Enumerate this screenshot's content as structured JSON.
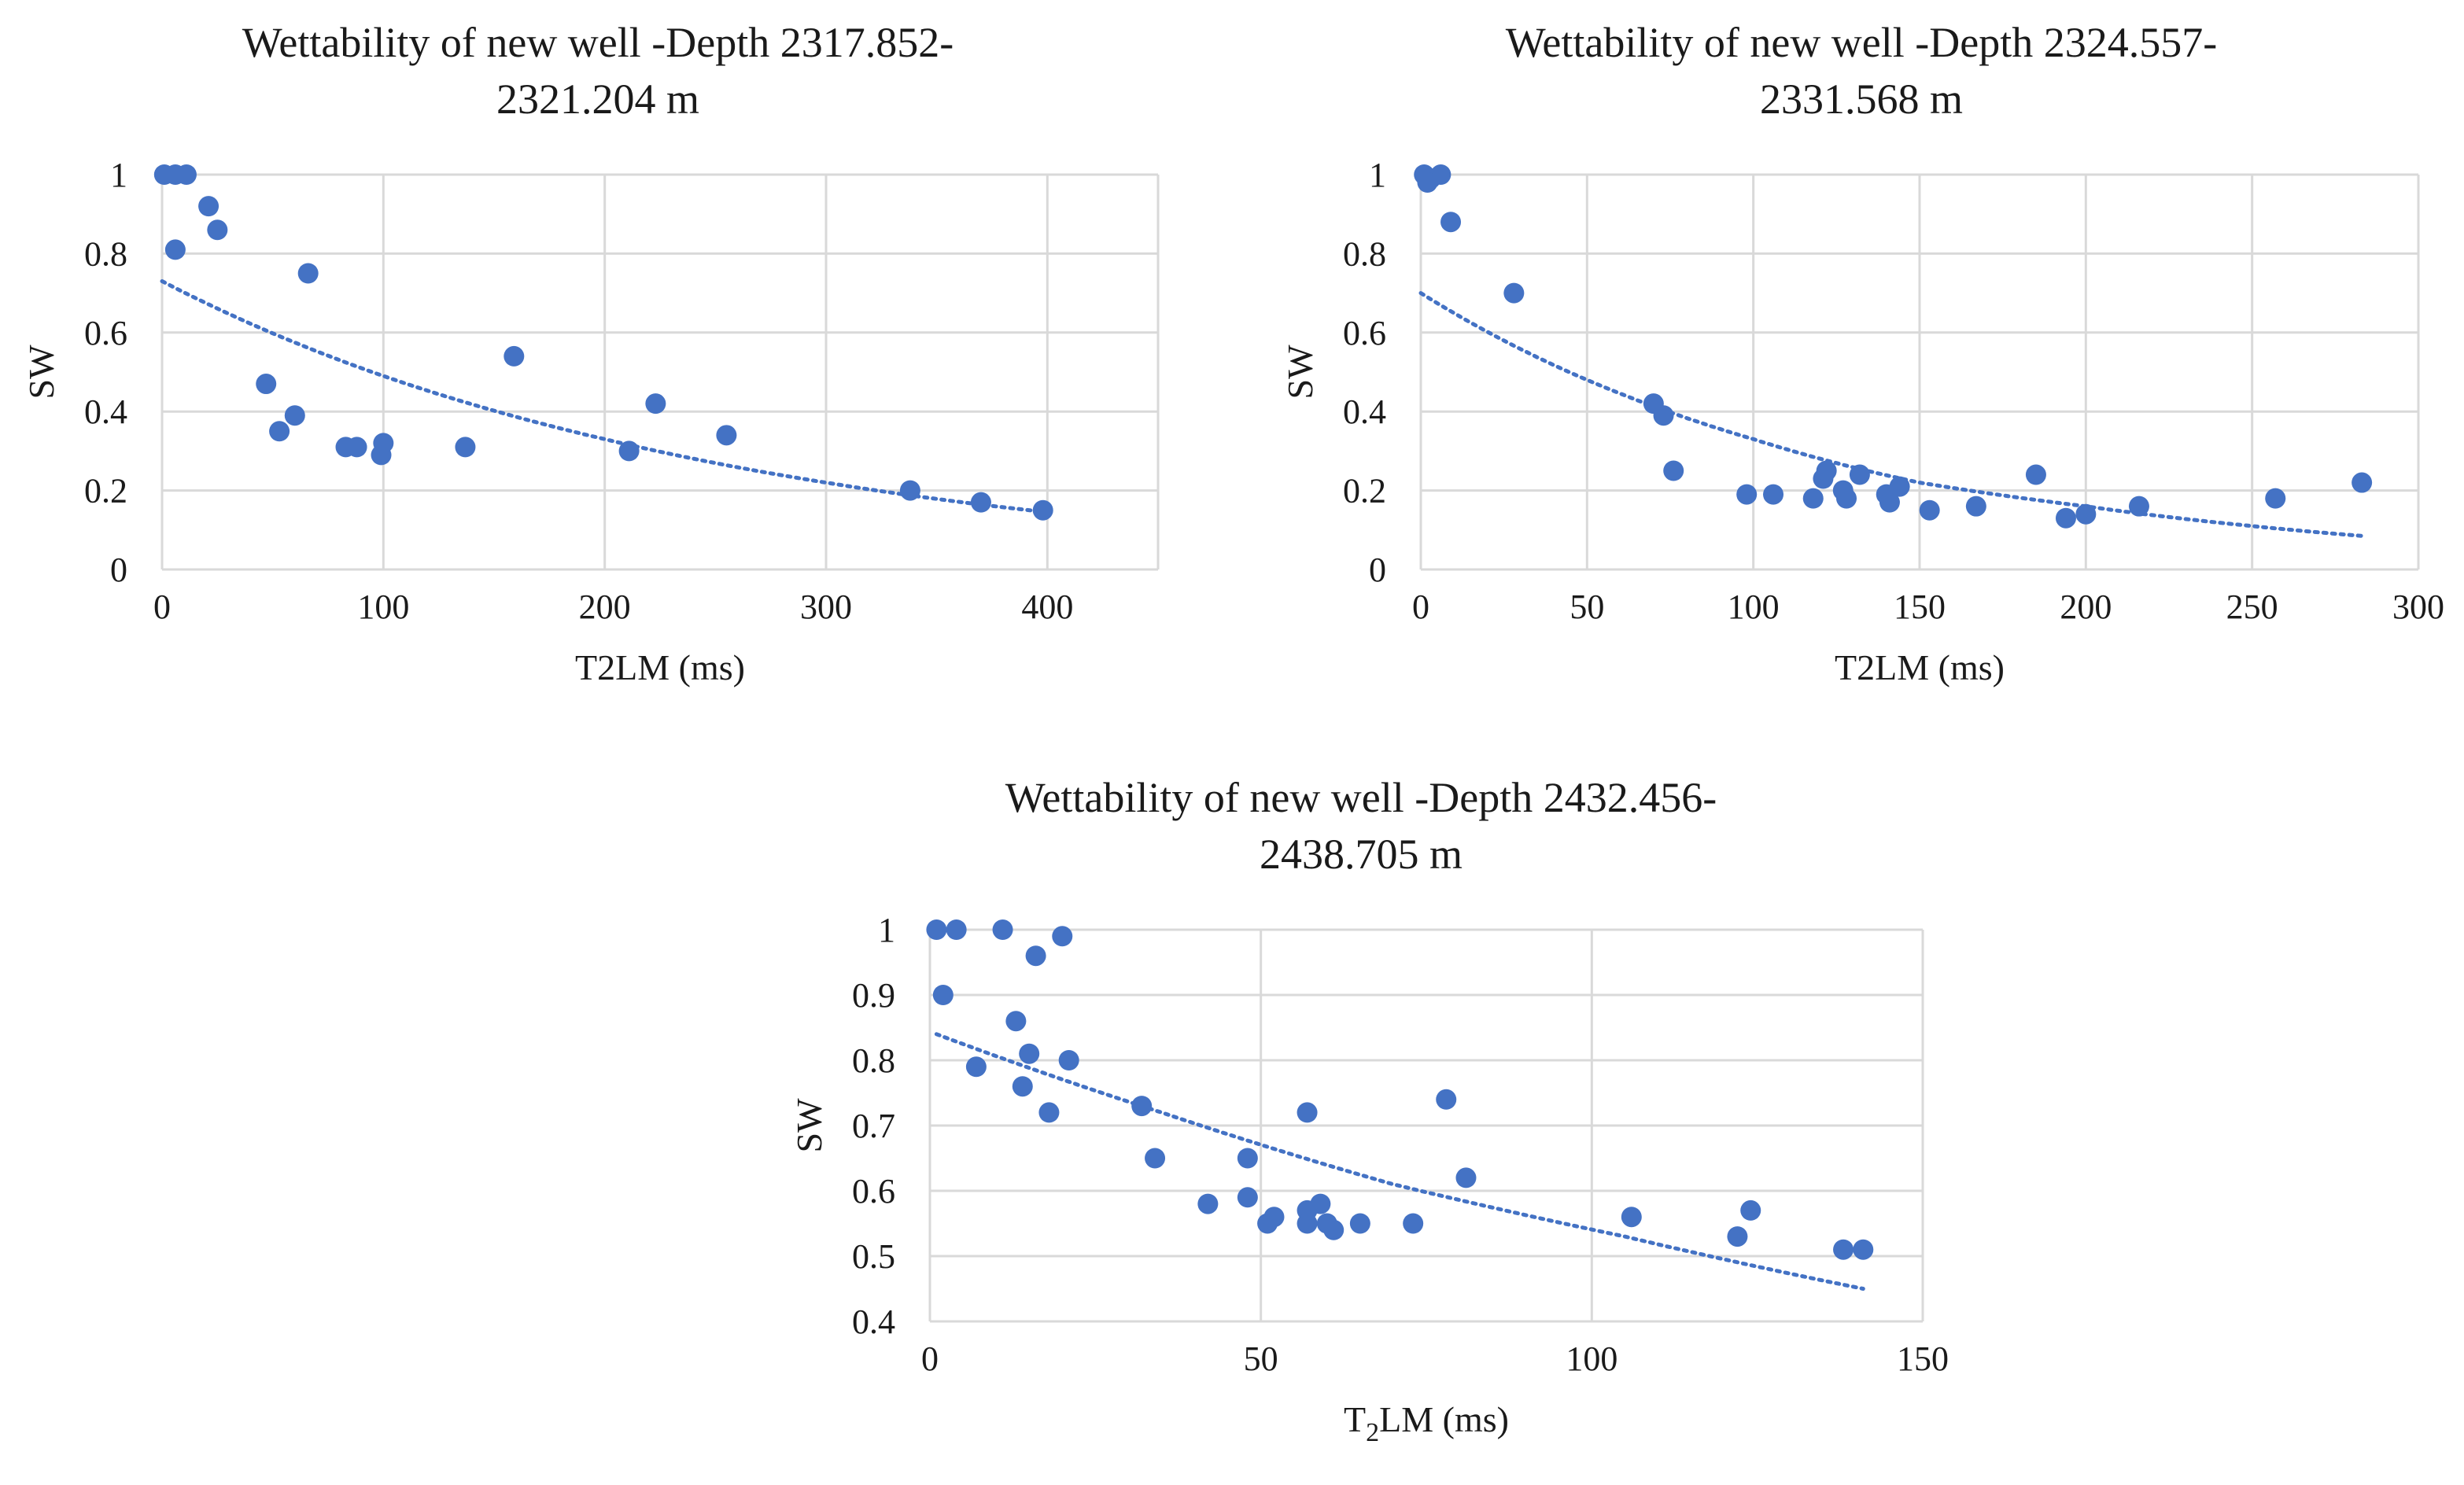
{
  "chart_data": [
    {
      "type": "scatter",
      "title": "Wettability of new well -Depth 2317.852-\n2321.204 m",
      "xlabel": "T2LM (ms)",
      "xlabel_sub": "",
      "xlabel_after": "",
      "ylabel": "SW",
      "xlim": [
        0,
        450
      ],
      "ylim": [
        0,
        1
      ],
      "xticks": [
        0,
        100,
        200,
        300,
        400
      ],
      "yticks": [
        0,
        0.2,
        0.4,
        0.6,
        0.8,
        1
      ],
      "grid": true,
      "series": [
        {
          "name": "SW",
          "color": "#4472c4",
          "points": [
            [
              1,
              1
            ],
            [
              6,
              1
            ],
            [
              11,
              1
            ],
            [
              6,
              0.81
            ],
            [
              21,
              0.92
            ],
            [
              25,
              0.86
            ],
            [
              66,
              0.75
            ],
            [
              47,
              0.47
            ],
            [
              53,
              0.35
            ],
            [
              60,
              0.39
            ],
            [
              83,
              0.31
            ],
            [
              88,
              0.31
            ],
            [
              99,
              0.29
            ],
            [
              100,
              0.32
            ],
            [
              137,
              0.31
            ],
            [
              159,
              0.54
            ],
            [
              211,
              0.3
            ],
            [
              223,
              0.42
            ],
            [
              255,
              0.34
            ],
            [
              338,
              0.2
            ],
            [
              370,
              0.17
            ],
            [
              398,
              0.15
            ]
          ]
        }
      ],
      "trendline": {
        "type": "exponential",
        "points": [
          [
            0,
            0.73
          ],
          [
            100,
            0.49
          ],
          [
            200,
            0.33
          ],
          [
            300,
            0.22
          ],
          [
            400,
            0.145
          ]
        ]
      }
    },
    {
      "type": "scatter",
      "title": "Wettability of new well -Depth 2324.557-\n2331.568 m",
      "xlabel": "T2LM (ms)",
      "xlabel_sub": "",
      "xlabel_after": "",
      "ylabel": "SW",
      "xlim": [
        0,
        300
      ],
      "ylim": [
        0,
        1
      ],
      "xticks": [
        0,
        50,
        100,
        150,
        200,
        250,
        300
      ],
      "yticks": [
        0,
        0.2,
        0.4,
        0.6,
        0.8,
        1
      ],
      "grid": true,
      "series": [
        {
          "name": "SW",
          "color": "#4472c4",
          "points": [
            [
              1,
              1
            ],
            [
              3,
              0.99
            ],
            [
              6,
              1
            ],
            [
              2,
              0.98
            ],
            [
              9,
              0.88
            ],
            [
              28,
              0.7
            ],
            [
              70,
              0.42
            ],
            [
              73,
              0.39
            ],
            [
              76,
              0.25
            ],
            [
              98,
              0.19
            ],
            [
              106,
              0.19
            ],
            [
              118,
              0.18
            ],
            [
              121,
              0.23
            ],
            [
              122,
              0.25
            ],
            [
              127,
              0.2
            ],
            [
              128,
              0.18
            ],
            [
              132,
              0.24
            ],
            [
              140,
              0.19
            ],
            [
              141,
              0.17
            ],
            [
              144,
              0.21
            ],
            [
              153,
              0.15
            ],
            [
              167,
              0.16
            ],
            [
              185,
              0.24
            ],
            [
              194,
              0.13
            ],
            [
              200,
              0.14
            ],
            [
              216,
              0.16
            ],
            [
              257,
              0.18
            ],
            [
              283,
              0.22
            ]
          ]
        }
      ],
      "trendline": {
        "type": "exponential",
        "points": [
          [
            0,
            0.7
          ],
          [
            50,
            0.48
          ],
          [
            100,
            0.33
          ],
          [
            150,
            0.22
          ],
          [
            200,
            0.16
          ],
          [
            250,
            0.11
          ],
          [
            283,
            0.085
          ]
        ]
      }
    },
    {
      "type": "scatter",
      "title": "Wettability of new well -Depth 2432.456-\n2438.705 m",
      "xlabel": "T",
      "xlabel_sub": "2",
      "xlabel_after": "LM (ms)",
      "ylabel": "SW",
      "xlim": [
        0,
        150
      ],
      "ylim": [
        0.4,
        1
      ],
      "xticks": [
        0,
        50,
        100,
        150
      ],
      "yticks": [
        0.4,
        0.5,
        0.6,
        0.7,
        0.8,
        0.9,
        1
      ],
      "grid": true,
      "series": [
        {
          "name": "SW",
          "color": "#4472c4",
          "points": [
            [
              1,
              1
            ],
            [
              4,
              1
            ],
            [
              11,
              1
            ],
            [
              20,
              0.99
            ],
            [
              16,
              0.96
            ],
            [
              2,
              0.9
            ],
            [
              13,
              0.86
            ],
            [
              15,
              0.81
            ],
            [
              21,
              0.8
            ],
            [
              7,
              0.79
            ],
            [
              14,
              0.76
            ],
            [
              18,
              0.72
            ],
            [
              32,
              0.73
            ],
            [
              34,
              0.65
            ],
            [
              48,
              0.65
            ],
            [
              57,
              0.72
            ],
            [
              78,
              0.74
            ],
            [
              81,
              0.62
            ],
            [
              42,
              0.58
            ],
            [
              48,
              0.59
            ],
            [
              51,
              0.55
            ],
            [
              52,
              0.56
            ],
            [
              57,
              0.57
            ],
            [
              57,
              0.55
            ],
            [
              59,
              0.58
            ],
            [
              60,
              0.55
            ],
            [
              61,
              0.54
            ],
            [
              65,
              0.55
            ],
            [
              73,
              0.55
            ],
            [
              106,
              0.56
            ],
            [
              122,
              0.53
            ],
            [
              124,
              0.57
            ],
            [
              138,
              0.51
            ],
            [
              141,
              0.51
            ]
          ]
        }
      ],
      "trendline": {
        "type": "exponential",
        "points": [
          [
            1,
            0.84
          ],
          [
            35,
            0.72
          ],
          [
            70,
            0.61
          ],
          [
            105,
            0.53
          ],
          [
            141,
            0.45
          ]
        ]
      }
    }
  ]
}
